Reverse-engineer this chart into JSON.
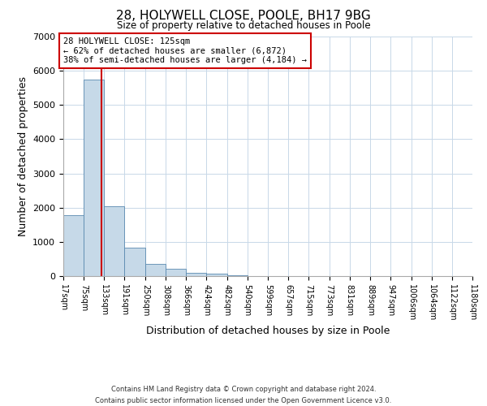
{
  "title": "28, HOLYWELL CLOSE, POOLE, BH17 9BG",
  "subtitle": "Size of property relative to detached houses in Poole",
  "xlabel": "Distribution of detached houses by size in Poole",
  "ylabel": "Number of detached properties",
  "bin_edges": [
    17,
    75,
    133,
    191,
    250,
    308,
    366,
    424,
    482,
    540,
    599,
    657,
    715,
    773,
    831,
    889,
    947,
    1006,
    1064,
    1122,
    1180
  ],
  "bin_labels": [
    "17sqm",
    "75sqm",
    "133sqm",
    "191sqm",
    "250sqm",
    "308sqm",
    "366sqm",
    "424sqm",
    "482sqm",
    "540sqm",
    "599sqm",
    "657sqm",
    "715sqm",
    "773sqm",
    "831sqm",
    "889sqm",
    "947sqm",
    "1006sqm",
    "1064sqm",
    "1122sqm",
    "1180sqm"
  ],
  "counts": [
    1780,
    5750,
    2050,
    820,
    360,
    220,
    100,
    60,
    30,
    0,
    0,
    0,
    0,
    0,
    0,
    0,
    0,
    0,
    0,
    0
  ],
  "bar_color": "#c6d9e8",
  "bar_edge_color": "#5a8ab0",
  "property_line_x": 125,
  "property_line_color": "#cc0000",
  "ylim": [
    0,
    7000
  ],
  "yticks": [
    0,
    1000,
    2000,
    3000,
    4000,
    5000,
    6000,
    7000
  ],
  "annotation_title": "28 HOLYWELL CLOSE: 125sqm",
  "annotation_line1": "← 62% of detached houses are smaller (6,872)",
  "annotation_line2": "38% of semi-detached houses are larger (4,184) →",
  "annotation_box_color": "#ffffff",
  "annotation_box_edge": "#cc0000",
  "footer1": "Contains HM Land Registry data © Crown copyright and database right 2024.",
  "footer2": "Contains public sector information licensed under the Open Government Licence v3.0.",
  "background_color": "#ffffff",
  "grid_color": "#c8d8e8"
}
